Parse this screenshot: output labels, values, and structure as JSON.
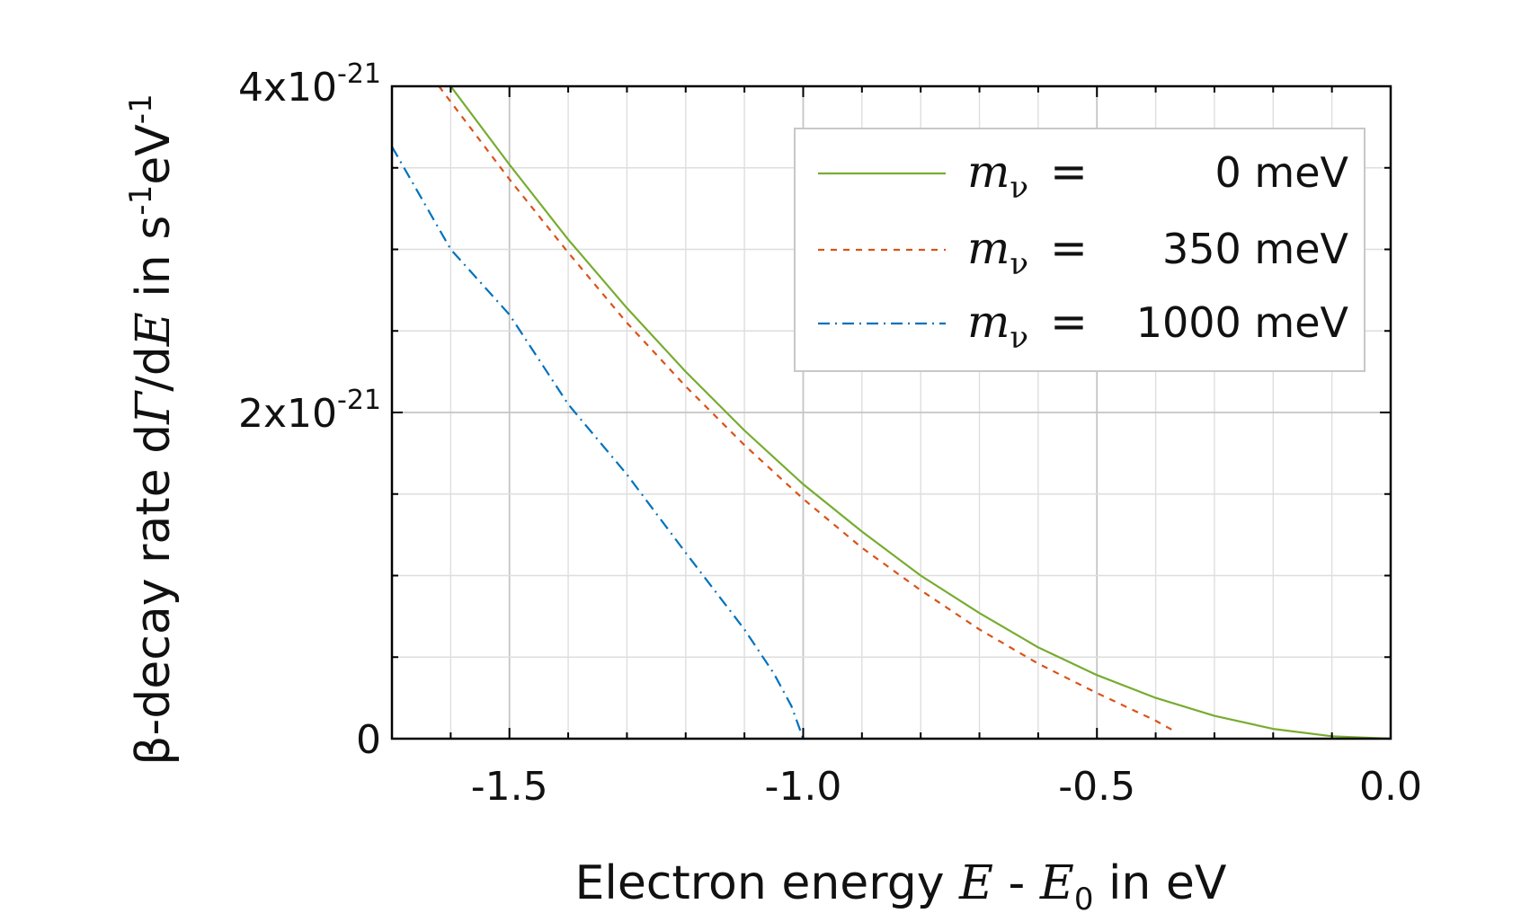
{
  "chart_data": {
    "type": "line",
    "xlabel": {
      "pre": "Electron energy ",
      "var1": "E",
      "mid": " - ",
      "var2": "E",
      "sub": "0",
      "post": " in eV"
    },
    "ylabel": {
      "pre": "β-decay rate d",
      "var1": "Γ",
      "slash": "/d",
      "var2": "E",
      "post": " in s",
      "sup1": "-1",
      "unit2": "eV",
      "sup2": "-1"
    },
    "xlim": [
      -1.7,
      0.0
    ],
    "ylim": [
      0,
      4e-21
    ],
    "x_ticks": [
      {
        "value": -1.5,
        "label": "-1.5"
      },
      {
        "value": -1.0,
        "label": "-1.0"
      },
      {
        "value": -0.5,
        "label": "-0.5"
      },
      {
        "value": 0.0,
        "label": "0.0"
      }
    ],
    "y_ticks": [
      {
        "value": 0,
        "base": "0",
        "exp": ""
      },
      {
        "value": 2e-21,
        "base": "2x10",
        "exp": "-21"
      },
      {
        "value": 4e-21,
        "base": "4x10",
        "exp": "-21"
      }
    ],
    "x_minor_step": 0.1,
    "y_minor_step": 5e-22,
    "grid": true,
    "legend_position": "top-right",
    "series": [
      {
        "sym": "m",
        "sub": "ν",
        "eq": "=",
        "value": "0 meV",
        "color": "#77ac30",
        "style": "solid",
        "mass_eV": 0.0,
        "x": [
          -1.6,
          -1.5,
          -1.4,
          -1.3,
          -1.2,
          -1.1,
          -1.0,
          -0.9,
          -0.8,
          -0.7,
          -0.6,
          -0.5,
          -0.4,
          -0.3,
          -0.2,
          -0.1,
          0.0
        ],
        "y": [
          4e-21,
          3.52e-21,
          3.06e-21,
          2.64e-21,
          2.25e-21,
          1.89e-21,
          1.56e-21,
          1.27e-21,
          1e-21,
          7.7e-22,
          5.6e-22,
          3.9e-22,
          2.5e-22,
          1.4e-22,
          6e-23,
          1.5e-23,
          0
        ]
      },
      {
        "sym": "m",
        "sub": "ν",
        "eq": "=",
        "value": "350 meV",
        "color": "#d95319",
        "style": "dashed",
        "mass_eV": 0.35,
        "x": [
          -1.62,
          -1.5,
          -1.4,
          -1.3,
          -1.2,
          -1.1,
          -1.0,
          -0.9,
          -0.8,
          -0.7,
          -0.6,
          -0.5,
          -0.45,
          -0.4,
          -0.37
        ],
        "y": [
          4e-21,
          3.43e-21,
          2.98e-21,
          2.55e-21,
          2.16e-21,
          1.8e-21,
          1.47e-21,
          1.17e-21,
          9.1e-22,
          6.7e-22,
          4.6e-22,
          2.8e-22,
          1.95e-22,
          1.1e-22,
          5e-23
        ]
      },
      {
        "sym": "m",
        "sub": "ν",
        "eq": "=",
        "value": "1000 meV",
        "color": "#0072bd",
        "style": "dashdot",
        "mass_eV": 1.0,
        "x": [
          -1.7,
          -1.6,
          -1.5,
          -1.4,
          -1.3,
          -1.2,
          -1.1,
          -1.05,
          -1.02,
          -1.0
        ],
        "y": [
          3.63e-21,
          3e-21,
          2.6e-21,
          2.05e-21,
          1.62e-21,
          1.14e-21,
          6.7e-22,
          4e-22,
          2e-22,
          0
        ]
      }
    ]
  }
}
